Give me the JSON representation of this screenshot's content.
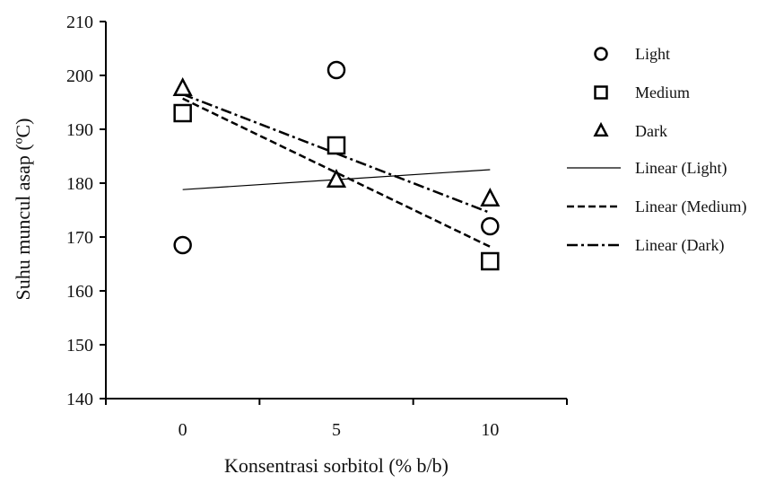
{
  "chart_data": {
    "type": "scatter",
    "xlabel": "Konsentrasi sorbitol (% b/b)",
    "ylabel": "Suhu muncul asap (ºC)",
    "xlim": [
      -2.5,
      12.5
    ],
    "ylim": [
      140,
      210
    ],
    "xticks": [
      0,
      5,
      10
    ],
    "xtick_labels": [
      "0",
      "5",
      "10"
    ],
    "yticks": [
      140,
      150,
      160,
      170,
      180,
      190,
      200,
      210
    ],
    "ytick_labels": [
      "140",
      "150",
      "160",
      "170",
      "180",
      "190",
      "200",
      "210"
    ],
    "grid": false,
    "legend_position": "right",
    "series": [
      {
        "name": "Light",
        "marker": "circle",
        "x": [
          0,
          5,
          10
        ],
        "y": [
          168.5,
          201,
          172
        ]
      },
      {
        "name": "Medium",
        "marker": "square",
        "x": [
          0,
          5,
          10
        ],
        "y": [
          193,
          187,
          165.5
        ]
      },
      {
        "name": "Dark",
        "marker": "triangle",
        "x": [
          0,
          5,
          10
        ],
        "y": [
          197.5,
          180.5,
          177
        ]
      }
    ],
    "trendlines": [
      {
        "name": "Linear (Light)",
        "style": "solid",
        "x": [
          0,
          10
        ],
        "y": [
          178.8,
          182.5
        ]
      },
      {
        "name": "Linear (Medium)",
        "style": "dashed",
        "x": [
          0,
          10
        ],
        "y": [
          195.7,
          168.2
        ]
      },
      {
        "name": "Linear (Dark)",
        "style": "dashdot",
        "x": [
          0,
          10
        ],
        "y": [
          196.5,
          174.5
        ]
      }
    ]
  }
}
